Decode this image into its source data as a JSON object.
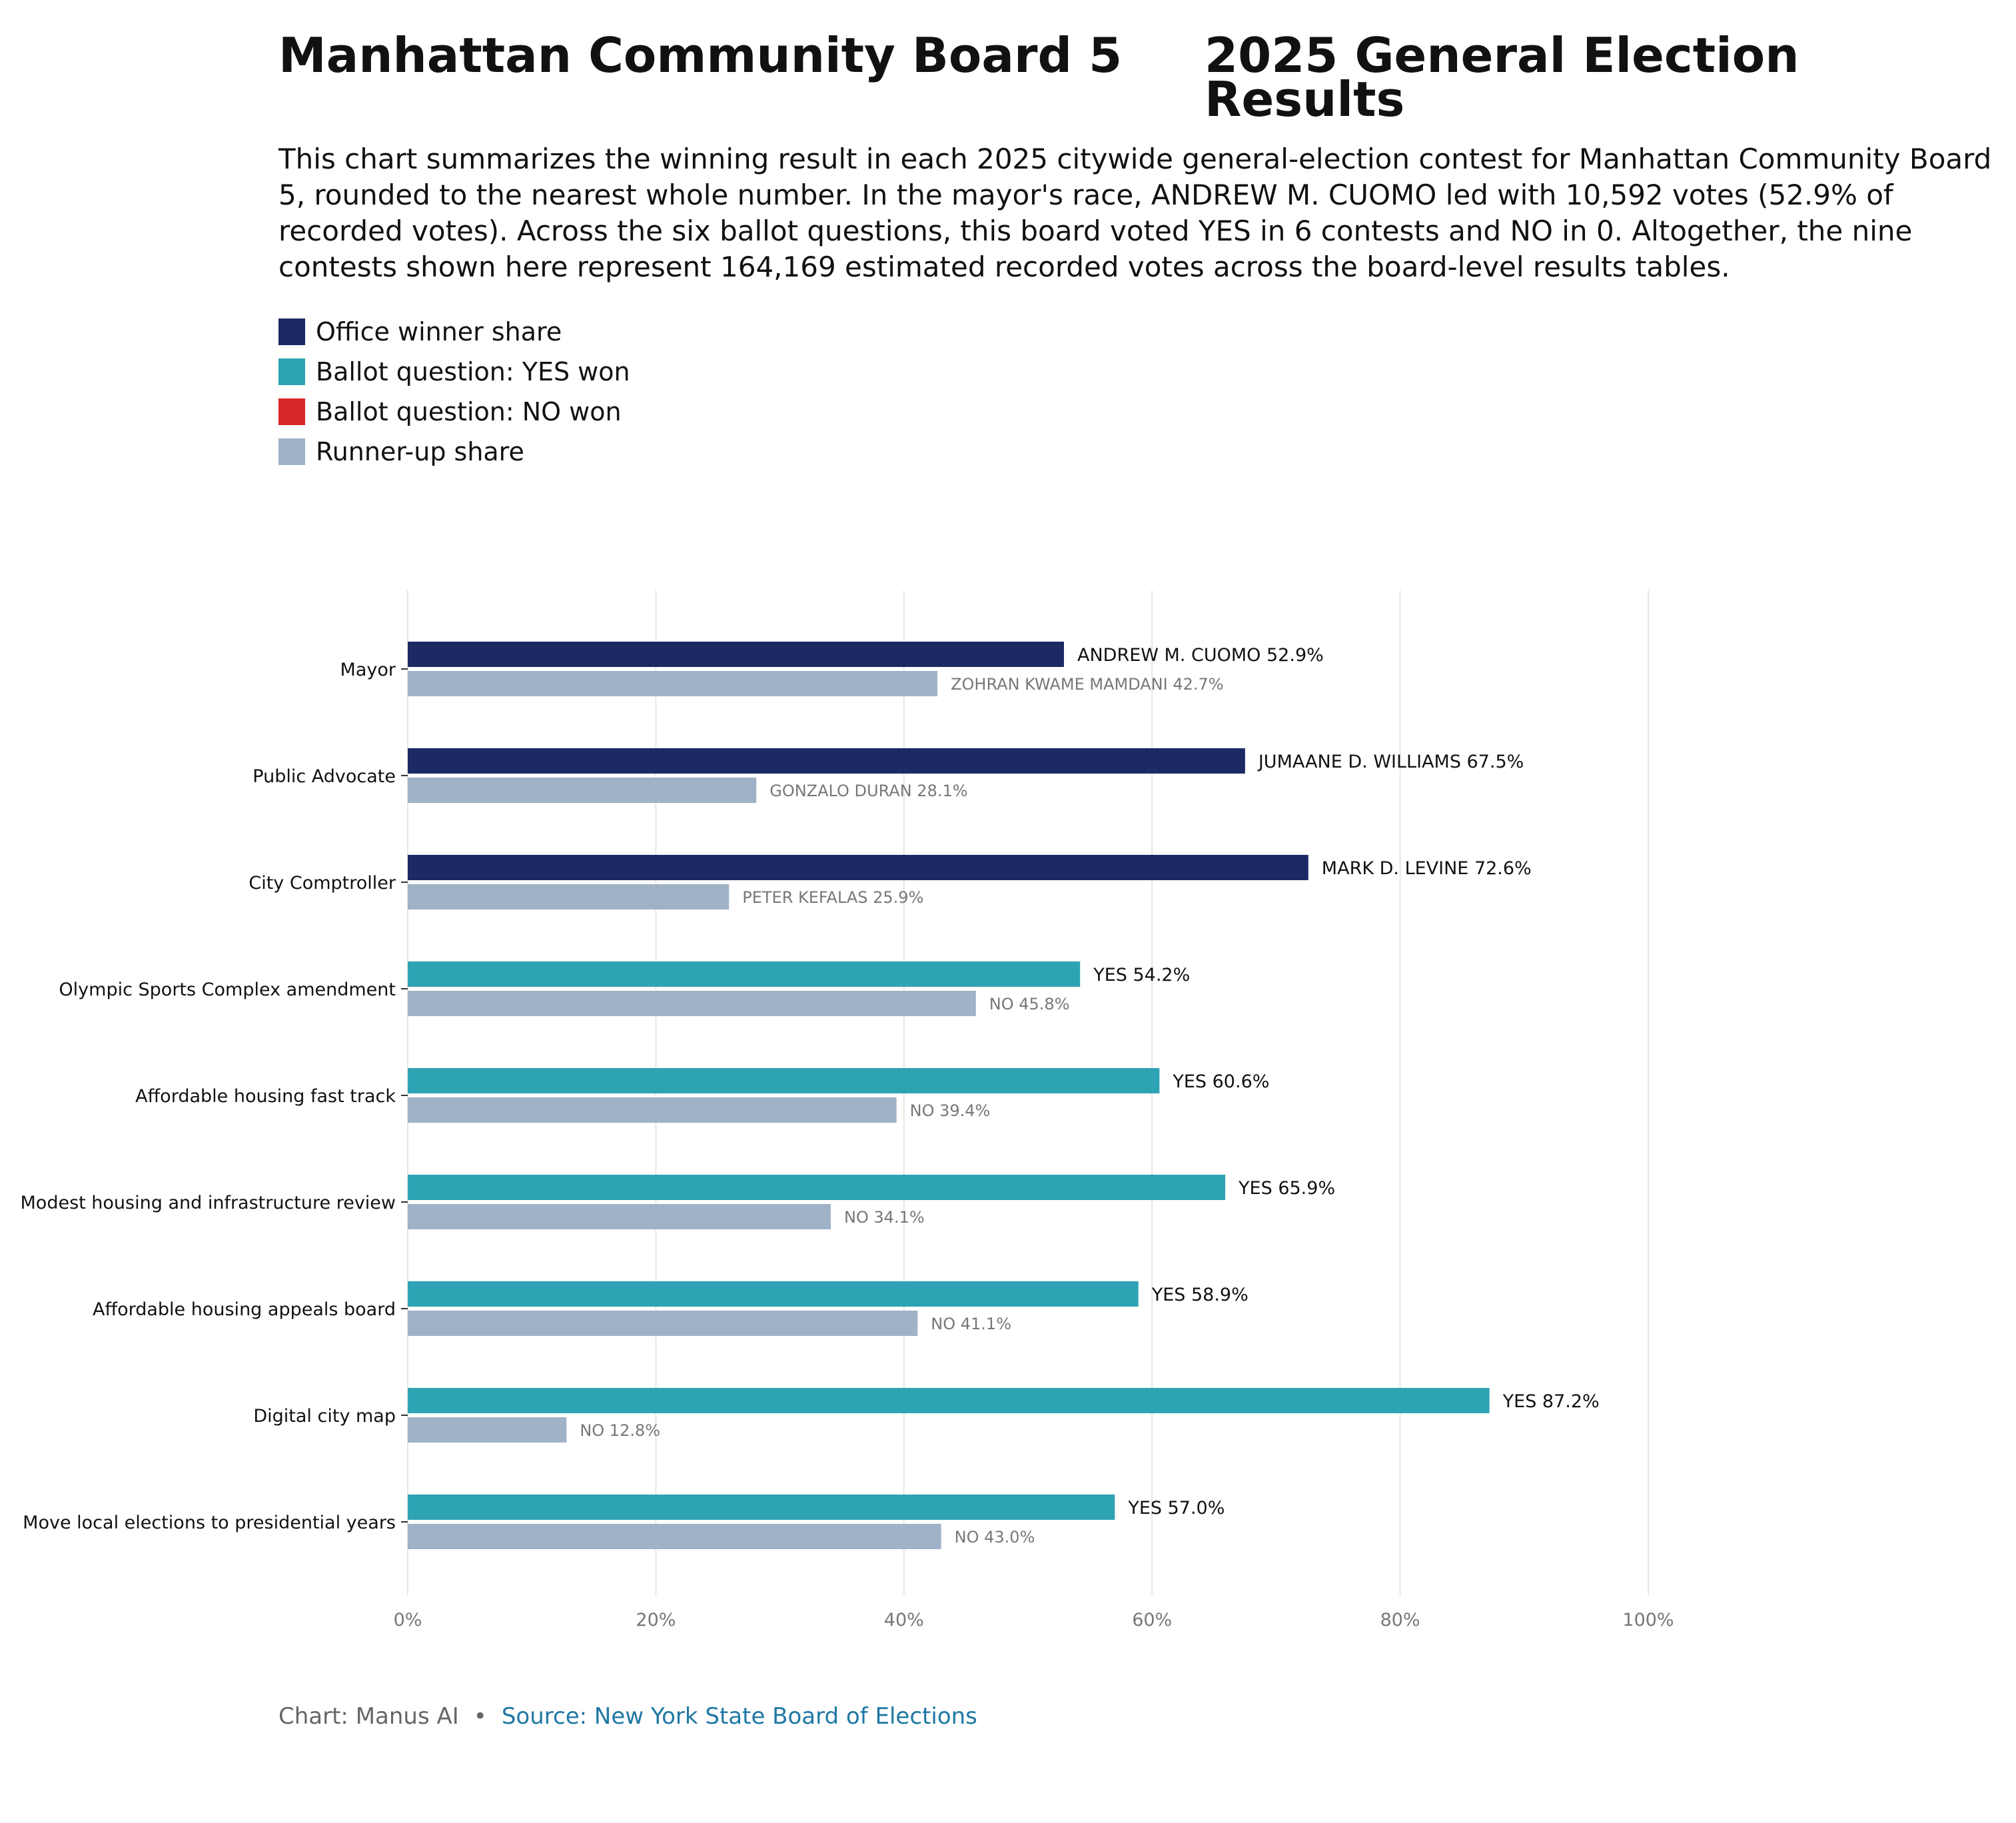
{
  "title_left": "Manhattan Community Board 5",
  "title_right": "2025 General Election Results",
  "subtitle": "This chart summarizes the winning result in each 2025 citywide general-election contest for Manhattan Community Board 5, rounded to the nearest whole number. In the mayor's race, ANDREW M. CUOMO led with 10,592 votes (52.9% of recorded votes). Across the six ballot questions, this board voted YES in 6 contests and NO in 0. Altogether, the nine contests shown here represent 164,169 estimated recorded votes across the board-level results tables.",
  "legend": [
    {
      "label": "Office winner share",
      "color": "#1b2a63"
    },
    {
      "label": "Ballot question: YES won",
      "color": "#2ea3b4"
    },
    {
      "label": "Ballot question: NO won",
      "color": "#d62728"
    },
    {
      "label": "Runner-up share",
      "color": "#9fb2c8"
    }
  ],
  "footer": {
    "credit": "Chart: Manus AI",
    "separator": "•",
    "source": "Source: New York State Board of Elections"
  },
  "chart_data": {
    "type": "bar",
    "orientation": "horizontal",
    "xlim": [
      0,
      100
    ],
    "xticks": [
      "0%",
      "20%",
      "40%",
      "60%",
      "80%",
      "100%"
    ],
    "grid": true,
    "categories": [
      "Mayor",
      "Public Advocate",
      "City Comptroller",
      "Olympic Sports Complex amendment",
      "Affordable housing fast track",
      "Modest housing and infrastructure review",
      "Affordable housing appeals board",
      "Digital city map",
      "Move local elections to presidential years"
    ],
    "winners": [
      {
        "label": "ANDREW M. CUOMO 52.9%",
        "value": 52.9,
        "kind": "office"
      },
      {
        "label": "JUMAANE D. WILLIAMS 67.5%",
        "value": 67.5,
        "kind": "office"
      },
      {
        "label": "MARK D. LEVINE 72.6%",
        "value": 72.6,
        "kind": "office"
      },
      {
        "label": "YES 54.2%",
        "value": 54.2,
        "kind": "yes"
      },
      {
        "label": "YES 60.6%",
        "value": 60.6,
        "kind": "yes"
      },
      {
        "label": "YES 65.9%",
        "value": 65.9,
        "kind": "yes"
      },
      {
        "label": "YES 58.9%",
        "value": 58.9,
        "kind": "yes"
      },
      {
        "label": "YES 87.2%",
        "value": 87.2,
        "kind": "yes"
      },
      {
        "label": "YES 57.0%",
        "value": 57.0,
        "kind": "yes"
      }
    ],
    "runners_up": [
      {
        "label": "ZOHRAN KWAME MAMDANI 42.7%",
        "value": 42.7
      },
      {
        "label": "GONZALO DURAN 28.1%",
        "value": 28.1
      },
      {
        "label": "PETER KEFALAS 25.9%",
        "value": 25.9
      },
      {
        "label": "NO 45.8%",
        "value": 45.8
      },
      {
        "label": "NO 39.4%",
        "value": 39.4
      },
      {
        "label": "NO 34.1%",
        "value": 34.1
      },
      {
        "label": "NO 41.1%",
        "value": 41.1
      },
      {
        "label": "NO 12.8%",
        "value": 12.8
      },
      {
        "label": "NO 43.0%",
        "value": 43.0
      }
    ],
    "colors": {
      "office": "#1b2a63",
      "yes": "#2ea3b4",
      "no": "#d62728",
      "runner_up": "#9fb2c8",
      "winner_label": "#111111",
      "runner_label": "#777777",
      "grid": "#e6e6e6",
      "tick": "#777777"
    }
  }
}
